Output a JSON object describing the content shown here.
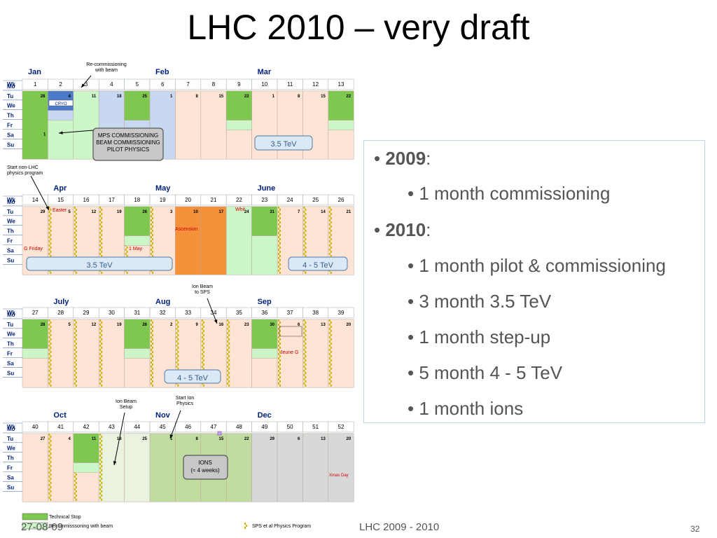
{
  "title": "LHC 2010 – very draft",
  "calendar": {
    "days": [
      "Wk",
      "Mo",
      "Tu",
      "We",
      "Th",
      "Fr",
      "Sa",
      "Su"
    ],
    "quarters": [
      {
        "weeks": [
          1,
          2,
          3,
          4,
          5,
          6,
          7,
          8,
          9,
          10,
          11,
          12,
          13
        ],
        "months": [
          {
            "label": "Jan",
            "col": 0
          },
          {
            "label": "Feb",
            "col": 5
          },
          {
            "label": "Mar",
            "col": 9
          }
        ],
        "mondays": [
          "28",
          "4",
          "11",
          "18",
          "25",
          "1",
          "8",
          "15",
          "22",
          "1",
          "8",
          "15",
          "22"
        ]
      },
      {
        "weeks": [
          14,
          15,
          16,
          17,
          18,
          19,
          20,
          21,
          22,
          23,
          24,
          25,
          26
        ],
        "months": [
          {
            "label": "Apr",
            "col": 1
          },
          {
            "label": "May",
            "col": 5
          },
          {
            "label": "June",
            "col": 9
          }
        ],
        "mondays": [
          "29",
          "5",
          "12",
          "19",
          "26",
          "3",
          "10",
          "17",
          "24",
          "31",
          "7",
          "14",
          "21"
        ]
      },
      {
        "weeks": [
          27,
          28,
          29,
          30,
          31,
          32,
          33,
          34,
          35,
          36,
          37,
          38,
          39
        ],
        "months": [
          {
            "label": "July",
            "col": 1
          },
          {
            "label": "Aug",
            "col": 5
          },
          {
            "label": "Sep",
            "col": 9
          }
        ],
        "mondays": [
          "28",
          "5",
          "12",
          "19",
          "26",
          "2",
          "9",
          "16",
          "23",
          "30",
          "6",
          "13",
          "20"
        ]
      },
      {
        "weeks": [
          40,
          41,
          42,
          43,
          44,
          45,
          46,
          47,
          48,
          49,
          50,
          51,
          52
        ],
        "months": [
          {
            "label": "Oct",
            "col": 1
          },
          {
            "label": "Nov",
            "col": 5
          },
          {
            "label": "Dec",
            "col": 9
          }
        ],
        "mondays": [
          "27",
          "4",
          "11",
          "18",
          "25",
          "1",
          "8",
          "15",
          "22",
          "29",
          "6",
          "13",
          "20"
        ]
      }
    ],
    "notes": {
      "recommissioning": "Re-commissioning\nwith beam",
      "cryo": "CRYO",
      "mps": "MPS COMMISSIONING\nBEAM COMMISSIONING\nPILOT PHYSICS",
      "tev35_q1": "3.5 TeV",
      "start_non_lhc": "Start non-LHC\nphysics program",
      "easter": "Easter",
      "gfriday": "G  Friday",
      "ascension": "Ascension",
      "whit": "Whit",
      "may1": "1 May",
      "tev35_q2": "3.5 TeV",
      "tev45_q2": "4 - 5  TeV",
      "ion_sps": "Ion Beam\nto SPS",
      "jeune": "Jeune G",
      "tev45_q3": "4 - 5  TeV",
      "ion_setup": "Ion Beam\nSetup",
      "start_ion": "Start Ion\nPhysics",
      "ions": "IONS\n(≈ 4 weeks)",
      "xmas": "Xmas Day"
    },
    "legend": {
      "tech_stop": "Technical Stop",
      "recomm": "Recommisssoning with beam",
      "sps": "SPS et al Physics Program"
    },
    "colors": {
      "normal": "#fde4d4",
      "tech": "#7ec850",
      "recomm": "#ccf5c8",
      "blue": "#c8d8f0",
      "cryo": "#4a7ac8",
      "orange": "#f5913a",
      "paleGreen": "#eaf3e0",
      "green2": "#c0dca0",
      "gray": "#d8d8d8",
      "navy": "#001f7a"
    }
  },
  "bullets": [
    {
      "level": 1,
      "bold": "2009",
      "rest": ":"
    },
    {
      "level": 2,
      "text": "• 1 month commissioning"
    },
    {
      "level": 1,
      "bold": "2010",
      "rest": ":"
    },
    {
      "level": 2,
      "text": "• 1 month pilot & commissioning"
    },
    {
      "level": 2,
      "text": "• 3 month 3.5 TeV"
    },
    {
      "level": 2,
      "text": "• 1 month step-up"
    },
    {
      "level": 2,
      "text": "• 5 month 4 - 5 TeV"
    },
    {
      "level": 2,
      "text": "• 1 month ions"
    }
  ],
  "footer": {
    "date": "27-08-09",
    "center": "LHC 2009 - 2010",
    "page": "32"
  }
}
